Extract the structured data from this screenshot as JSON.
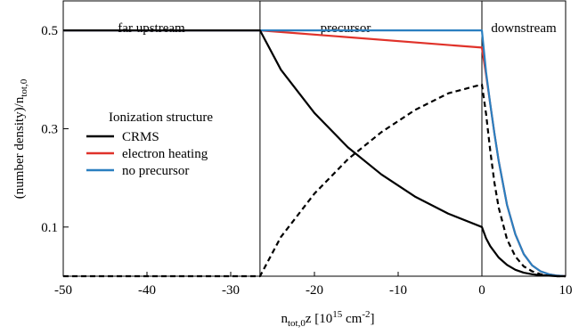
{
  "chart_data": {
    "type": "line",
    "title": "",
    "xlabel": "n_tot,0 z [10^15 cm^-2]",
    "ylabel": "(number density)/n_tot,0",
    "xlim": [
      -50,
      10
    ],
    "ylim": [
      0,
      0.56
    ],
    "x_ticks": [
      "-50",
      "-40",
      "-30",
      "-20",
      "-10",
      "0",
      "10"
    ],
    "x_tick_values": [
      -50,
      -40,
      -30,
      -20,
      -10,
      0,
      10
    ],
    "y_ticks": [
      "0.1",
      "0.3",
      "0.5"
    ],
    "y_tick_values": [
      0.1,
      0.3,
      0.5
    ],
    "region_boundaries": [
      -26.5,
      0
    ],
    "regions": [
      "far upstream",
      "precursor",
      "downstream"
    ],
    "legend": {
      "title": "Ionization structure",
      "placement": "center-left",
      "entries": [
        "CRMS",
        "electron heating",
        "no precursor"
      ]
    },
    "colors": {
      "crms": "#000000",
      "electron_heating": "#e0322a",
      "no_precursor": "#2a7fc0"
    },
    "series": [
      {
        "name": "CRMS",
        "style": "solid",
        "color": "#000000",
        "x": [
          -50,
          -26.5,
          -24,
          -20,
          -16,
          -12,
          -8,
          -4,
          0,
          0.5,
          1,
          2,
          3,
          4,
          5,
          6,
          7,
          8,
          9,
          10
        ],
        "y": [
          0.5,
          0.5,
          0.42,
          0.332,
          0.262,
          0.207,
          0.162,
          0.127,
          0.1,
          0.077,
          0.061,
          0.038,
          0.023,
          0.013,
          0.007,
          0.004,
          0.002,
          0.001,
          0.0,
          0.0
        ]
      },
      {
        "name": "CRMS (dashed)",
        "style": "dashed",
        "color": "#000000",
        "x": [
          -50,
          -26.5,
          -24,
          -20,
          -16,
          -12,
          -8,
          -4,
          0,
          0.5,
          1,
          1.5,
          2,
          3,
          4,
          5,
          6,
          7,
          8,
          9,
          10
        ],
        "y": [
          0.0,
          0.0,
          0.08,
          0.168,
          0.238,
          0.293,
          0.338,
          0.372,
          0.39,
          0.33,
          0.255,
          0.19,
          0.14,
          0.075,
          0.04,
          0.02,
          0.01,
          0.004,
          0.002,
          0.0,
          0.0
        ]
      },
      {
        "name": "electron heating",
        "style": "solid",
        "color": "#e0322a",
        "x": [
          -50,
          -26.5,
          0,
          0.5,
          1,
          1.5,
          2,
          3,
          4,
          5,
          6,
          7,
          8,
          9,
          10
        ],
        "y": [
          0.5,
          0.5,
          0.465,
          0.41,
          0.35,
          0.29,
          0.235,
          0.145,
          0.085,
          0.045,
          0.022,
          0.01,
          0.004,
          0.001,
          0.0
        ]
      },
      {
        "name": "no precursor",
        "style": "solid",
        "color": "#2a7fc0",
        "x": [
          -50,
          -26.5,
          0,
          0.5,
          1,
          1.5,
          2,
          3,
          4,
          5,
          6,
          7,
          8,
          9,
          10
        ],
        "y": [
          0.5,
          0.5,
          0.5,
          0.415,
          0.35,
          0.29,
          0.235,
          0.145,
          0.085,
          0.045,
          0.022,
          0.01,
          0.004,
          0.001,
          0.0
        ]
      }
    ]
  }
}
